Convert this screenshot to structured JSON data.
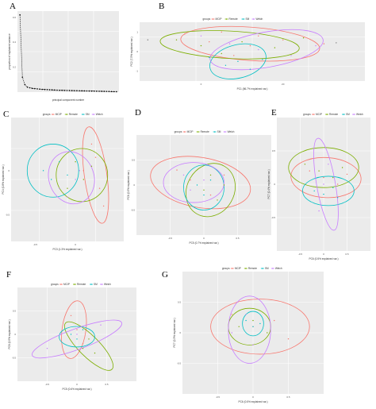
{
  "figure": {
    "panels": [
      "A",
      "B",
      "C",
      "D",
      "E",
      "F",
      "G"
    ]
  },
  "colors": {
    "panel_bg": "#ebebeb",
    "grid": "#ffffff",
    "scree_line": "#000000",
    "groups": {
      "MCIP": "#f8766d",
      "Remote": "#7cae00",
      "SM": "#00bfc4",
      "Welch": "#c77cff"
    }
  },
  "chart_data": [
    {
      "panel": "A",
      "type": "line",
      "xlabel": "principal component number",
      "ylabel": "proportion of explained variance",
      "x": [
        1,
        2,
        3,
        4,
        5,
        6,
        7,
        8,
        9,
        10,
        11,
        12,
        13,
        14,
        15,
        16,
        17,
        18,
        19,
        20,
        21,
        22,
        23,
        24,
        25,
        26,
        27,
        28,
        29,
        30,
        31,
        32,
        33,
        34,
        35,
        36,
        37,
        38,
        39,
        40
      ],
      "y": [
        0.62,
        0.12,
        0.06,
        0.04,
        0.035,
        0.03,
        0.028,
        0.026,
        0.024,
        0.022,
        0.021,
        0.02,
        0.019,
        0.018,
        0.017,
        0.016,
        0.015,
        0.0145,
        0.014,
        0.0135,
        0.013,
        0.0125,
        0.012,
        0.0115,
        0.011,
        0.0105,
        0.01,
        0.0095,
        0.009,
        0.0085,
        0.008,
        0.0075,
        0.007,
        0.0065,
        0.006,
        0.0055,
        0.005,
        0.0045,
        0.004,
        0.0035
      ],
      "xlim": [
        0,
        41
      ],
      "ylim": [
        0,
        0.65
      ],
      "yticks": [
        "0.6",
        "0.4",
        "0.2"
      ]
    },
    {
      "panel": "B",
      "type": "scatter",
      "legend_title": "groups",
      "legend": [
        "MCIP",
        "Remote",
        "SM",
        "Welch"
      ],
      "xlabel": "PC1 (86.7% explained var.)",
      "ylabel": "PC2 (7.5% explained var.)",
      "xlim": [
        -15,
        40
      ],
      "ylim": [
        -1.5,
        1.5
      ],
      "xticks": [
        0,
        20
      ],
      "yticks": [
        -1,
        0,
        1
      ],
      "series": [
        {
          "name": "MCIP",
          "x": [
            -4,
            2,
            8,
            12,
            14,
            5,
            20,
            30
          ],
          "y": [
            0.9,
            0.5,
            -0.2,
            0.3,
            0.8,
            1.0,
            0.6,
            0.4
          ]
        },
        {
          "name": "Remote",
          "x": [
            -6,
            0,
            5,
            10,
            18,
            25
          ],
          "y": [
            0.6,
            0.3,
            -0.1,
            0.5,
            0.2,
            0.7
          ]
        },
        {
          "name": "SM",
          "x": [
            2,
            6,
            9,
            12,
            15
          ],
          "y": [
            -0.3,
            -0.7,
            -0.5,
            -0.9,
            -0.4
          ]
        },
        {
          "name": "Welch",
          "x": [
            0,
            7,
            14,
            22,
            28
          ],
          "y": [
            0.8,
            0.4,
            0.1,
            -0.2,
            0.3
          ]
        }
      ],
      "ellipses": [
        {
          "name": "MCIP",
          "cx": 12,
          "cy": 0.4,
          "rx": 17,
          "ry": 0.85,
          "angle": -4
        },
        {
          "name": "Remote",
          "cx": 7,
          "cy": 0.35,
          "rx": 17,
          "ry": 0.7,
          "angle": -3
        },
        {
          "name": "SM",
          "cx": 9,
          "cy": -0.5,
          "rx": 7,
          "ry": 0.85,
          "angle": 14
        },
        {
          "name": "Welch",
          "cx": 16,
          "cy": 0.1,
          "rx": 14,
          "ry": 0.9,
          "angle": 10
        }
      ],
      "extra_points": {
        "x": [
          -13,
          33
        ],
        "y": [
          0.6,
          0.45
        ]
      }
    },
    {
      "panel": "C",
      "type": "scatter",
      "legend_title": "groups",
      "legend": [
        "MCIP",
        "Remote",
        "SM",
        "Welch"
      ],
      "xlabel": "PC3 (1.3% explained var.)",
      "ylabel": "PC4 (0.8% explained var.)",
      "xlim": [
        -0.8,
        0.6
      ],
      "ylim": [
        -0.8,
        0.6
      ],
      "xticks": [
        -0.5,
        0.0
      ],
      "yticks": [
        -0.5,
        0.0
      ],
      "series": [
        {
          "name": "MCIP",
          "x": [
            0.2,
            0.3,
            0.1,
            0.25,
            0.35
          ],
          "y": [
            0.3,
            -0.2,
            0.0,
            0.15,
            -0.4
          ]
        },
        {
          "name": "Remote",
          "x": [
            0.0,
            0.1,
            -0.1,
            0.2
          ],
          "y": [
            0.1,
            -0.1,
            -0.2,
            0.05
          ]
        },
        {
          "name": "SM",
          "x": [
            -0.4,
            -0.3,
            -0.2,
            -0.1
          ],
          "y": [
            0.0,
            -0.1,
            0.1,
            -0.05
          ]
        },
        {
          "name": "Welch",
          "x": [
            -0.2,
            -0.1,
            0.0,
            0.05
          ],
          "y": [
            -0.2,
            -0.3,
            -0.1,
            0.0
          ]
        }
      ],
      "ellipses": [
        {
          "name": "MCIP",
          "cx": 0.25,
          "cy": -0.05,
          "rx": 0.14,
          "ry": 0.55,
          "angle": 8
        },
        {
          "name": "Remote",
          "cx": 0.08,
          "cy": -0.05,
          "rx": 0.32,
          "ry": 0.3,
          "angle": 0
        },
        {
          "name": "SM",
          "cx": -0.28,
          "cy": 0.0,
          "rx": 0.32,
          "ry": 0.3,
          "angle": 0
        },
        {
          "name": "Welch",
          "cx": -0.05,
          "cy": -0.08,
          "rx": 0.28,
          "ry": 0.3,
          "angle": 20
        }
      ]
    },
    {
      "panel": "D",
      "type": "scatter",
      "legend_title": "groups",
      "legend": [
        "MCIP",
        "Remote",
        "SM",
        "Welch"
      ],
      "xlabel": "PC5 (0.7% explained var.)",
      "ylabel": "PC6 (0.5% explained var.)",
      "xlim": [
        -1.0,
        1.0
      ],
      "ylim": [
        -1.0,
        1.0
      ],
      "xticks": [
        -0.5,
        0.0,
        0.5
      ],
      "yticks": [
        -0.5,
        0.0,
        0.5
      ],
      "series": [
        {
          "name": "MCIP",
          "x": [
            -0.4,
            -0.2,
            0.1,
            0.3
          ],
          "y": [
            0.3,
            0.1,
            -0.2,
            0.2
          ]
        },
        {
          "name": "Remote",
          "x": [
            0.0,
            0.2,
            0.3,
            0.1
          ],
          "y": [
            -0.1,
            -0.3,
            0.0,
            0.2
          ]
        },
        {
          "name": "SM",
          "x": [
            -0.1,
            0.0,
            0.1
          ],
          "y": [
            0.0,
            -0.2,
            0.1
          ]
        },
        {
          "name": "Welch",
          "x": [
            -0.3,
            -0.2,
            0.0
          ],
          "y": [
            0.2,
            -0.1,
            0.1
          ]
        }
      ],
      "ellipses": [
        {
          "name": "MCIP",
          "cx": -0.05,
          "cy": 0.05,
          "rx": 0.75,
          "ry": 0.5,
          "angle": -10
        },
        {
          "name": "Remote",
          "cx": 0.1,
          "cy": -0.1,
          "rx": 0.35,
          "ry": 0.55,
          "angle": -30
        },
        {
          "name": "SM",
          "cx": 0.0,
          "cy": -0.05,
          "rx": 0.3,
          "ry": 0.45,
          "angle": 0
        },
        {
          "name": "Welch",
          "cx": -0.15,
          "cy": 0.05,
          "rx": 0.45,
          "ry": 0.4,
          "angle": 0
        }
      ]
    },
    {
      "panel": "E",
      "type": "scatter",
      "legend_title": "groups",
      "legend": [
        "MCIP",
        "Remote",
        "SM",
        "Welch"
      ],
      "xlabel": "PC6 (0.5% explained var.)",
      "ylabel": "PC7 (0.4% explained var.)",
      "xlim": [
        -1.0,
        1.0
      ],
      "ylim": [
        -1.0,
        1.0
      ],
      "xticks": [
        -0.5,
        0.0,
        0.5
      ],
      "yticks": [
        -0.5,
        0.0,
        0.5
      ],
      "series": [
        {
          "name": "MCIP",
          "x": [
            -0.3,
            0.0,
            0.3,
            0.5
          ],
          "y": [
            0.2,
            0.1,
            0.0,
            0.15
          ]
        },
        {
          "name": "Remote",
          "x": [
            -0.4,
            -0.1,
            0.2,
            0.4
          ],
          "y": [
            0.3,
            0.2,
            0.1,
            0.25
          ]
        },
        {
          "name": "SM",
          "x": [
            -0.2,
            0.0,
            0.2,
            0.3
          ],
          "y": [
            -0.1,
            -0.15,
            -0.05,
            -0.2
          ]
        },
        {
          "name": "Welch",
          "x": [
            -0.1,
            0.0,
            0.1
          ],
          "y": [
            -0.4,
            0.0,
            0.3
          ]
        }
      ],
      "ellipses": [
        {
          "name": "MCIP",
          "cx": 0.05,
          "cy": 0.1,
          "rx": 0.75,
          "ry": 0.3,
          "angle": -3
        },
        {
          "name": "Remote",
          "cx": 0.0,
          "cy": 0.25,
          "rx": 0.75,
          "ry": 0.3,
          "angle": 0
        },
        {
          "name": "SM",
          "cx": 0.1,
          "cy": -0.1,
          "rx": 0.55,
          "ry": 0.22,
          "angle": 0
        },
        {
          "name": "Welch",
          "cx": 0.05,
          "cy": 0.0,
          "rx": 0.2,
          "ry": 0.7,
          "angle": 10
        }
      ]
    },
    {
      "panel": "F",
      "type": "scatter",
      "legend_title": "groups",
      "legend": [
        "MCIP",
        "Remote",
        "SM",
        "Welch"
      ],
      "xlabel": "PC5 (0.6% explained var.)",
      "ylabel": "PC6 (0.5% explained var.)",
      "xlim": [
        -1.0,
        1.0
      ],
      "ylim": [
        -1.0,
        1.0
      ],
      "xticks": [
        -0.5,
        0.0,
        0.5
      ],
      "yticks": [
        -0.5,
        0.0,
        0.5
      ],
      "series": [
        {
          "name": "MCIP",
          "x": [
            -0.1,
            0.0,
            0.1
          ],
          "y": [
            0.4,
            0.1,
            -0.2
          ]
        },
        {
          "name": "Remote",
          "x": [
            0.1,
            0.2,
            0.3
          ],
          "y": [
            -0.3,
            -0.1,
            -0.4
          ]
        },
        {
          "name": "SM",
          "x": [
            -0.1,
            0.0,
            0.1
          ],
          "y": [
            0.0,
            -0.1,
            0.1
          ]
        },
        {
          "name": "Welch",
          "x": [
            -0.5,
            0.0,
            0.4
          ],
          "y": [
            -0.3,
            0.0,
            0.2
          ]
        }
      ],
      "ellipses": [
        {
          "name": "MCIP",
          "cx": -0.05,
          "cy": 0.1,
          "rx": 0.2,
          "ry": 0.62,
          "angle": -8
        },
        {
          "name": "Remote",
          "cx": 0.2,
          "cy": -0.25,
          "rx": 0.55,
          "ry": 0.22,
          "angle": -45
        },
        {
          "name": "SM",
          "cx": 0.0,
          "cy": -0.05,
          "rx": 0.3,
          "ry": 0.22,
          "angle": 0
        },
        {
          "name": "Welch",
          "cx": 0.0,
          "cy": -0.1,
          "rx": 0.8,
          "ry": 0.22,
          "angle": 20
        }
      ]
    },
    {
      "panel": "G",
      "type": "scatter",
      "legend_title": "groups",
      "legend": [
        "MCIP",
        "Remote",
        "SM",
        "Welch"
      ],
      "xlabel": "PC6 (0.5% explained var.)",
      "ylabel": "PC7 (0.3% explained var.)",
      "xlim": [
        -1.0,
        1.0
      ],
      "ylim": [
        -1.0,
        1.0
      ],
      "xticks": [
        -0.5,
        0.0,
        0.5
      ],
      "yticks": [
        -0.5,
        0.0,
        0.5
      ],
      "series": [
        {
          "name": "MCIP",
          "x": [
            -0.3,
            0.0,
            0.3,
            0.5
          ],
          "y": [
            0.3,
            0.1,
            0.2,
            -0.1
          ]
        },
        {
          "name": "Remote",
          "x": [
            -0.2,
            0.0,
            0.2
          ],
          "y": [
            0.1,
            0.2,
            0.0
          ]
        },
        {
          "name": "SM",
          "x": [
            -0.1,
            0.0,
            0.1
          ],
          "y": [
            0.2,
            0.1,
            0.15
          ]
        },
        {
          "name": "Welch",
          "x": [
            -0.3,
            -0.1,
            0.0
          ],
          "y": [
            0.0,
            0.3,
            -0.2
          ]
        }
      ],
      "ellipses": [
        {
          "name": "MCIP",
          "cx": 0.1,
          "cy": 0.1,
          "rx": 0.7,
          "ry": 0.45,
          "angle": 0
        },
        {
          "name": "Remote",
          "cx": -0.05,
          "cy": 0.1,
          "rx": 0.3,
          "ry": 0.3,
          "angle": 0
        },
        {
          "name": "SM",
          "cx": 0.0,
          "cy": 0.15,
          "rx": 0.15,
          "ry": 0.2,
          "angle": 0
        },
        {
          "name": "Welch",
          "cx": -0.05,
          "cy": 0.05,
          "rx": 0.3,
          "ry": 0.55,
          "angle": 0
        }
      ]
    }
  ]
}
